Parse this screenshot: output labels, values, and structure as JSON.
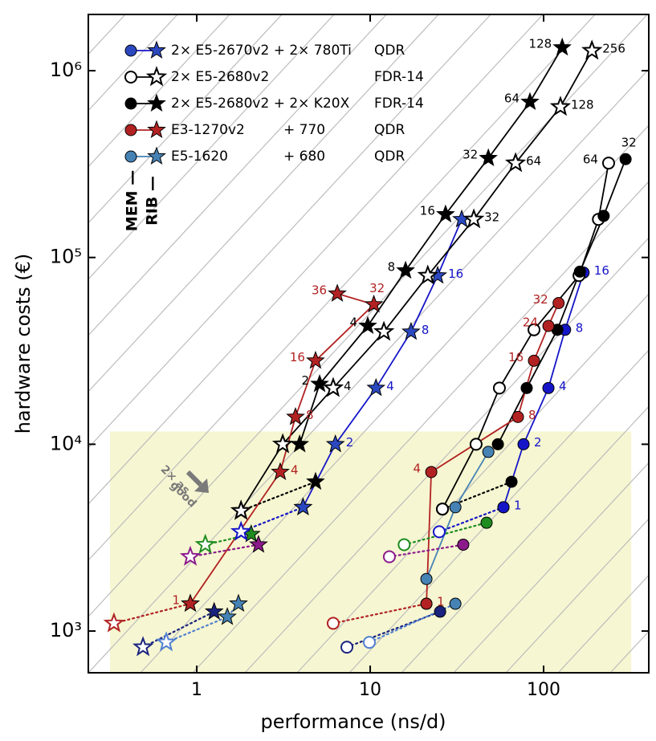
{
  "chart_data": {
    "type": "scatter",
    "xlabel": "performance (ns/d)",
    "ylabel": "hardware costs (€)",
    "log_x": true,
    "log_y": true,
    "xlim": [
      0.237,
      404
    ],
    "ylim": [
      598,
      2000000
    ],
    "xticks": [
      1,
      10,
      100
    ],
    "yticks": [
      {
        "value": 1000,
        "label": "10³"
      },
      {
        "value": 10000,
        "label": "10⁴"
      },
      {
        "value": 100000,
        "label": "10⁵"
      },
      {
        "value": 1000000,
        "label": "10⁶"
      }
    ],
    "highlight": {
      "x": [
        0.316,
        320
      ],
      "y": [
        598,
        11700
      ],
      "color": "#f6f6d2"
    },
    "annotations": {
      "good": [
        "2× as",
        "good"
      ],
      "mem": "MEM —",
      "rib": "RIB —"
    },
    "legend": [
      {
        "text": "2× E5-2670v2 + 2× 780Ti",
        "network": "QDR",
        "color": "#2b48c0",
        "line_color": "#1515c8",
        "open": false
      },
      {
        "text": "2× E5-2680v2",
        "network": "FDR-14",
        "color": "#000000",
        "line_color": "#000000",
        "open": true
      },
      {
        "text": "2× E5-2680v2 + 2× K20X",
        "network": "FDR-14",
        "color": "#000000",
        "line_color": "#000000",
        "open": false
      },
      {
        "text": "E3-1270v2",
        "gpu": "+ 770",
        "network": "QDR",
        "color": "#b22222",
        "line_color": "#b22222",
        "open": false
      },
      {
        "text": "E5-1620",
        "gpu": "+ 680",
        "network": "QDR",
        "color": "#4682b4",
        "line_color": "#4682b4",
        "open": false
      }
    ],
    "series": [
      {
        "marker": "star",
        "color": "#1515c8",
        "fill": "#2b48c0",
        "open": false,
        "dash": "solid",
        "x": [
          4.1,
          6.3,
          10.8,
          17.2,
          24.5,
          33.7
        ],
        "values": [
          4600,
          10000,
          20000,
          40000,
          80000,
          160000
        ],
        "labels": [
          null,
          "2",
          "4",
          "8",
          "16",
          null
        ],
        "label_side": "right"
      },
      {
        "marker": "circle",
        "color": "#1515c8",
        "fill": "#1515c8",
        "open": false,
        "dash": "solid",
        "x": [
          58.7,
          76.6,
          106.6,
          133,
          170
        ],
        "values": [
          4600,
          10000,
          20000,
          41000,
          83000
        ],
        "labels": [
          "1",
          "2",
          "4",
          "8",
          "16"
        ],
        "label_side": "right"
      },
      {
        "marker": "star",
        "color": "#000000",
        "fill": "#000000",
        "open": true,
        "dash": "solid",
        "x": [
          1.8,
          3.13,
          6.12,
          12.0,
          21.5,
          39.6,
          68.9,
          125,
          190
        ],
        "values": [
          4400,
          10000,
          20000,
          40000,
          80000,
          160000,
          320000,
          640000,
          1280000
        ],
        "labels": [
          null,
          null,
          "4",
          null,
          null,
          "32",
          "64",
          "128",
          "256"
        ],
        "label_side": "right"
      },
      {
        "marker": "star",
        "color": "#000000",
        "fill": "#000000",
        "open": false,
        "dash": "solid",
        "x": [
          3.92,
          5.11,
          9.68,
          16.0,
          27.2,
          48.0,
          83.4,
          128
        ],
        "values": [
          10000,
          21000,
          43000,
          85000,
          170000,
          340000,
          680000,
          1330000
        ],
        "labels": [
          null,
          "2",
          "4",
          "8",
          "16",
          "32",
          "64",
          "128"
        ],
        "label_side": "left"
      },
      {
        "marker": "circle",
        "color": "#000000",
        "fill": "#000000",
        "open": true,
        "dash": "solid",
        "x": [
          26.1,
          40.8,
          55.6,
          88.0,
          160,
          207,
          237
        ],
        "values": [
          4500,
          10000,
          20000,
          41000,
          80000,
          160000,
          320000
        ],
        "labels": [
          null,
          null,
          null,
          null,
          null,
          null,
          "64"
        ],
        "label_side": "left"
      },
      {
        "marker": "circle",
        "color": "#000000",
        "fill": "#000000",
        "open": false,
        "dash": "solid",
        "x": [
          54.5,
          79.9,
          120,
          162,
          222,
          297
        ],
        "values": [
          10000,
          20000,
          41000,
          84000,
          167000,
          336000
        ],
        "labels": [
          null,
          null,
          null,
          null,
          null,
          "32"
        ],
        "label_side": "above"
      },
      {
        "marker": "star",
        "color": "#b22222",
        "fill": "#b22222",
        "open": false,
        "dash": "solid",
        "x": [
          0.918,
          3.03,
          3.71,
          4.84,
          10.5,
          6.46
        ],
        "values": [
          1400,
          7100,
          14000,
          28000,
          56000,
          64000
        ],
        "labels": [
          "1",
          "4",
          "8",
          "16",
          "32",
          "36"
        ],
        "label_side": [
          "left",
          "right",
          "right",
          "left",
          "above",
          "left"
        ]
      },
      {
        "marker": "circle",
        "color": "#b22222",
        "fill": "#b22222",
        "open": false,
        "dash": "solid",
        "x": [
          21.1,
          22.5,
          71.1,
          88.0,
          106.6,
          122
        ],
        "values": [
          1400,
          7100,
          14000,
          28000,
          43000,
          57000
        ],
        "labels": [
          "1",
          "4",
          "8",
          "16",
          "24",
          "32"
        ],
        "label_side": [
          "right",
          "left",
          "right",
          "left",
          "left",
          "left"
        ]
      },
      {
        "marker": "circle",
        "color": "#4682b4",
        "fill": "#4682b4",
        "open": false,
        "dash": "solid",
        "x": [
          21.1,
          31.0,
          48.0
        ],
        "values": [
          1900,
          4600,
          9100
        ]
      },
      {
        "marker": "star",
        "color": "#b22222",
        "fill": "#b22222",
        "open": [
          true,
          false
        ],
        "dash": "dotted",
        "x": [
          0.333,
          0.918
        ],
        "values": [
          1100,
          1400
        ]
      },
      {
        "marker": "circle",
        "color": "#b22222",
        "fill": "#b22222",
        "open": [
          true,
          false
        ],
        "dash": "dotted",
        "x": [
          6.12,
          21.1
        ],
        "values": [
          1100,
          1400
        ]
      },
      {
        "marker": "star",
        "color": "#1a237e",
        "fill": "#1a237e",
        "open": [
          true,
          false
        ],
        "dash": "dotted",
        "x": [
          0.49,
          1.26
        ],
        "values": [
          820,
          1270
        ]
      },
      {
        "marker": "star",
        "color": "#4f7fd0",
        "fill": "#4682b4",
        "open": [
          true,
          false,
          false
        ],
        "dash": "dotted",
        "x": [
          0.667,
          1.5,
          1.74
        ],
        "values": [
          870,
          1190,
          1400
        ]
      },
      {
        "marker": "circle",
        "color": "#1a237e",
        "fill": "#1a237e",
        "open": [
          true,
          false
        ],
        "dash": "dotted",
        "x": [
          7.34,
          25.3
        ],
        "values": [
          820,
          1270
        ]
      },
      {
        "marker": "circle",
        "color": "#4f7fd0",
        "fill": "#4682b4",
        "open": [
          true,
          false
        ],
        "dash": "dotted",
        "x": [
          9.89,
          31.0
        ],
        "values": [
          870,
          1400
        ]
      },
      {
        "marker": "star",
        "color": "#8b1a8b",
        "fill": "#8b1a8b",
        "open": [
          true,
          false
        ],
        "dash": "dotted",
        "x": [
          0.918,
          2.27
        ],
        "values": [
          2500,
          2900
        ]
      },
      {
        "marker": "circle",
        "color": "#8b1a8b",
        "fill": "#8b1a8b",
        "open": [
          true,
          false
        ],
        "dash": "dotted",
        "x": [
          12.9,
          34.4
        ],
        "values": [
          2500,
          2900
        ]
      },
      {
        "marker": "star",
        "color": "#1e8c1e",
        "fill": "#1e8c1e",
        "open": [
          true,
          false
        ],
        "dash": "dotted",
        "x": [
          1.12,
          2.06
        ],
        "values": [
          2900,
          3300
        ]
      },
      {
        "marker": "circle",
        "color": "#1e8c1e",
        "fill": "#1e8c1e",
        "open": [
          true,
          false
        ],
        "dash": "dotted",
        "x": [
          15.7,
          46.9
        ],
        "values": [
          2900,
          3800
        ]
      },
      {
        "marker": "star",
        "color": "#000000",
        "fill": "#000000",
        "open": [
          true,
          false
        ],
        "dash": "dotted",
        "x": [
          1.8,
          4.84
        ],
        "values": [
          4400,
          6300
        ]
      },
      {
        "marker": "circle",
        "color": "#000000",
        "fill": "#000000",
        "open": [
          true,
          false
        ],
        "dash": "dotted",
        "x": [
          26.1,
          65.3
        ],
        "values": [
          4500,
          6300
        ]
      },
      {
        "marker": "star",
        "color": "#1515c8",
        "fill": "#2b48c0",
        "open": [
          true,
          false
        ],
        "dash": "dotted",
        "x": [
          1.8,
          4.1
        ],
        "values": [
          3400,
          4600
        ]
      },
      {
        "marker": "circle",
        "color": "#1515c8",
        "fill": "#1515c8",
        "open": [
          true,
          false
        ],
        "dash": "dotted",
        "x": [
          25.0,
          58.7
        ],
        "values": [
          3400,
          4600
        ]
      }
    ]
  }
}
